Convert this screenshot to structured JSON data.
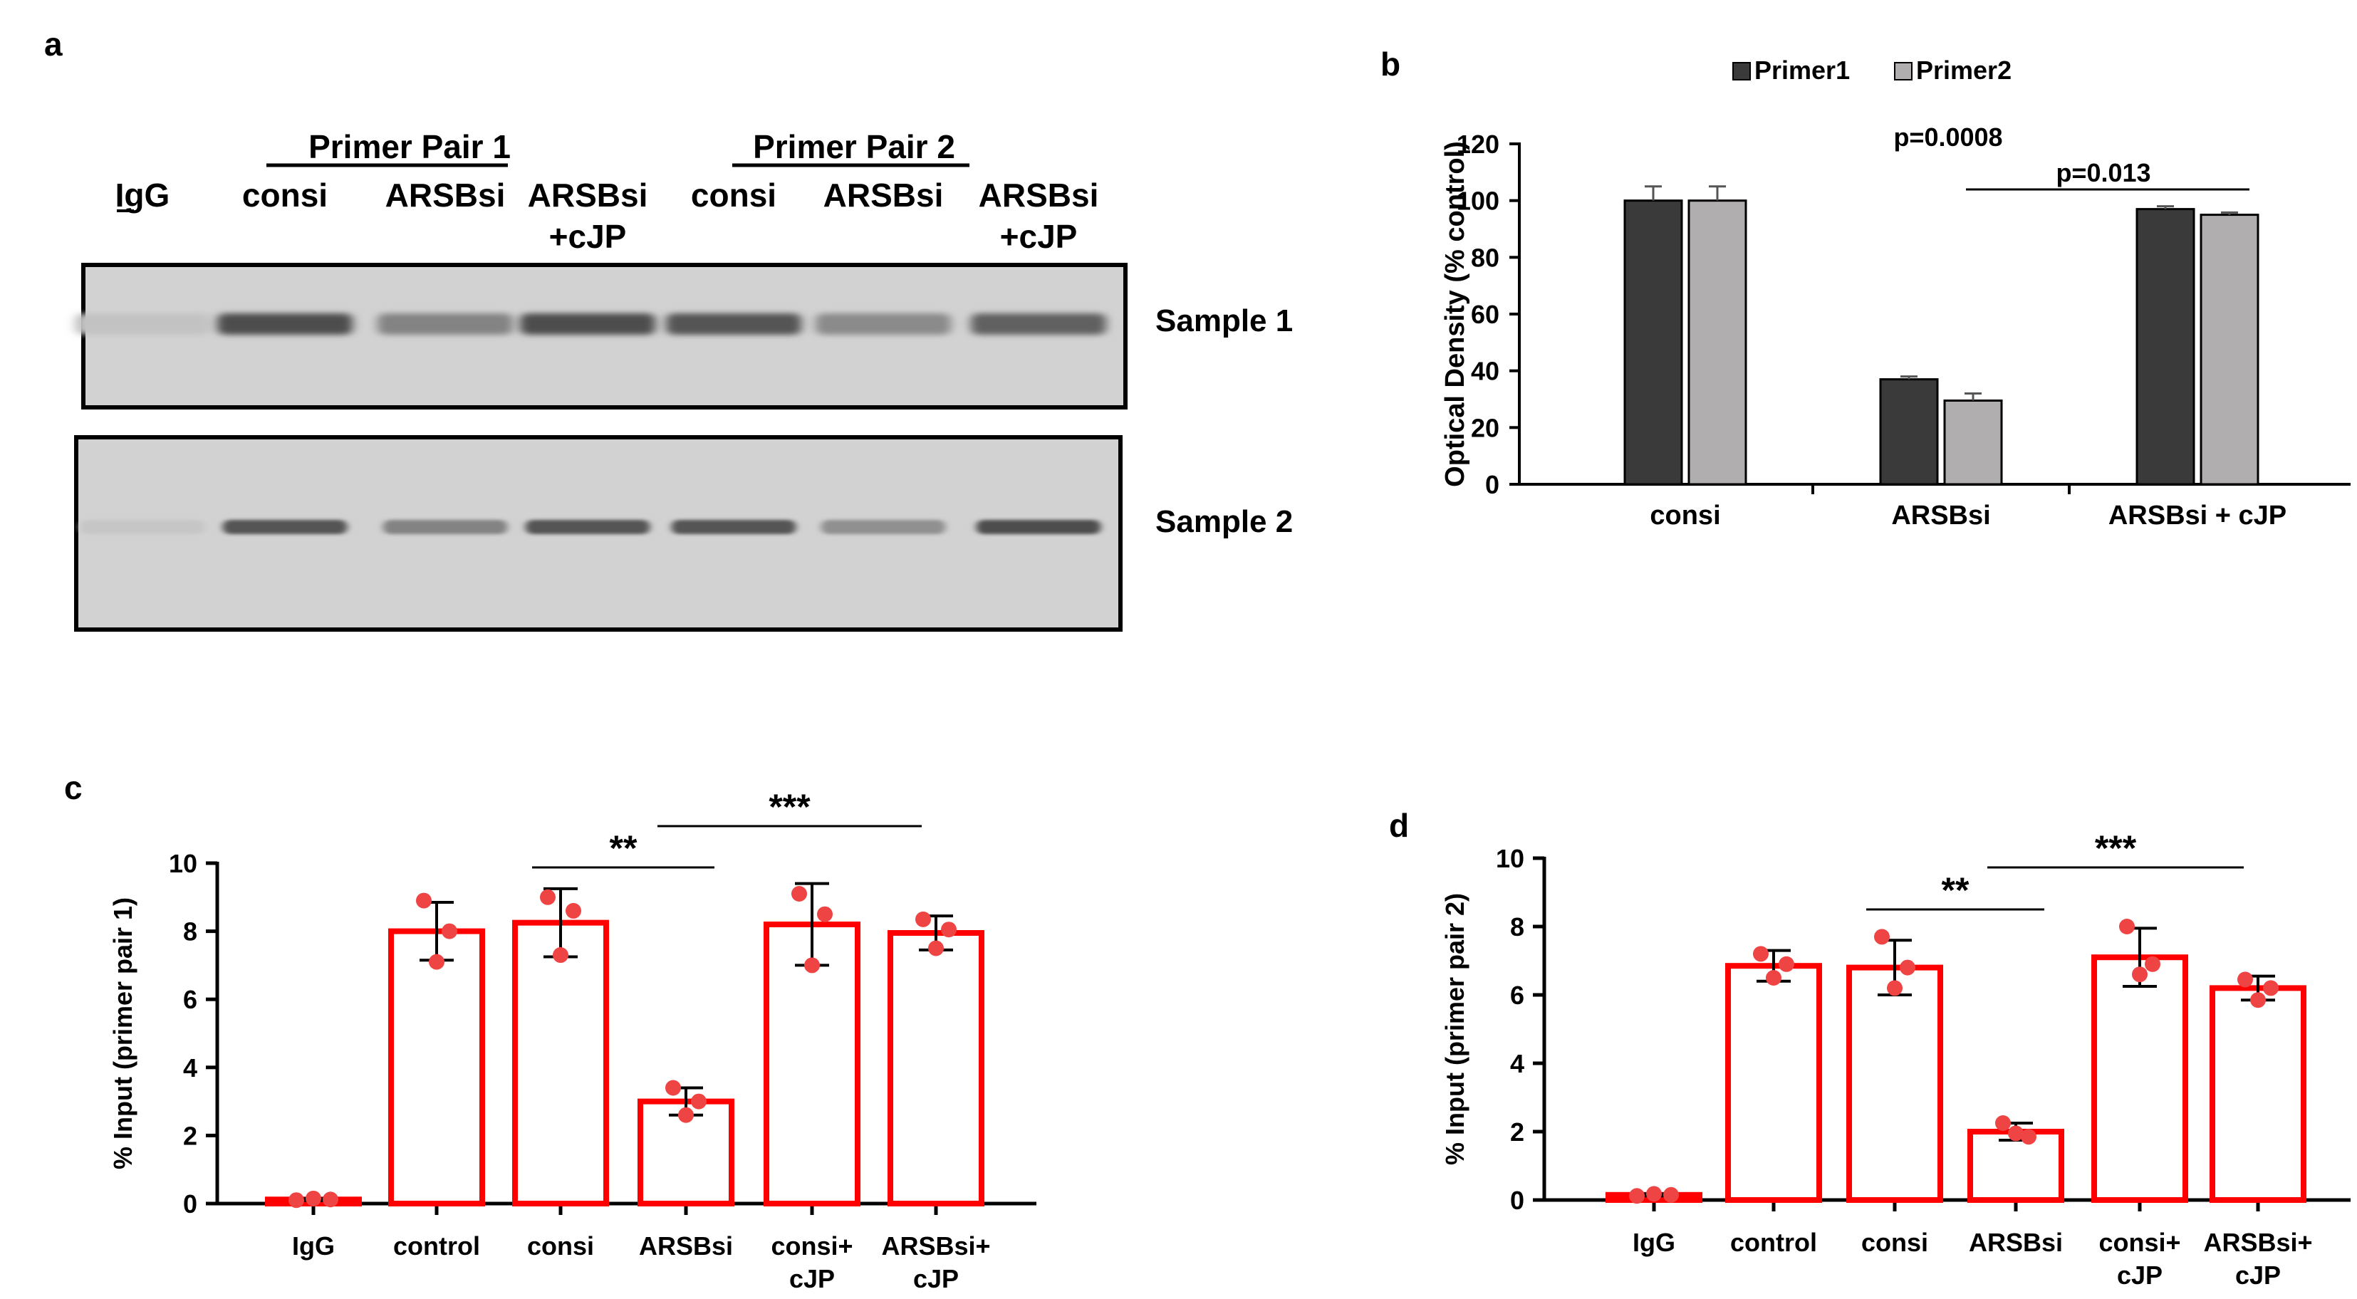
{
  "figure": {
    "panels": [
      {
        "letter": "a",
        "groups": [
          {
            "label": "Primer Pair 1"
          },
          {
            "label": "Primer Pair 2"
          }
        ],
        "lanes": [
          {
            "line1": "IgG",
            "line2": ""
          },
          {
            "line1": "consi",
            "line2": ""
          },
          {
            "line1": "ARSBsi",
            "line2": ""
          },
          {
            "line1": "ARSBsi",
            "line2": "+cJP"
          },
          {
            "line1": "consi",
            "line2": ""
          },
          {
            "line1": "ARSBsi",
            "line2": ""
          },
          {
            "line1": "ARSBsi",
            "line2": "+cJP"
          }
        ],
        "blots": [
          {
            "label": "Sample 1",
            "band_intensity": [
              0.08,
              0.95,
              0.55,
              0.95,
              0.9,
              0.5,
              0.8
            ]
          },
          {
            "label": "Sample 2",
            "band_intensity": [
              0.05,
              0.9,
              0.55,
              0.9,
              0.9,
              0.45,
              0.95
            ]
          }
        ]
      },
      {
        "letter": "b"
      },
      {
        "letter": "c"
      },
      {
        "letter": "d"
      }
    ]
  },
  "chart_data": [
    {
      "panel": "b",
      "type": "bar",
      "ylabel": "Optical Density (% control)",
      "ylim": [
        0,
        120
      ],
      "yticks": [
        0,
        20,
        40,
        60,
        80,
        100,
        120
      ],
      "categories": [
        "consi",
        "ARSBsi",
        "ARSBsi + cJP"
      ],
      "legend_position": "top",
      "series": [
        {
          "name": "Primer1",
          "color": "#3a3a3a",
          "values": [
            100,
            37,
            97
          ],
          "errors": [
            5,
            1,
            1
          ]
        },
        {
          "name": "Primer2",
          "color": "#b0aeae",
          "values": [
            100,
            29.5,
            95
          ],
          "errors": [
            5,
            2.5,
            0.8
          ]
        }
      ],
      "annotations": [
        {
          "text": "p=0.0008"
        },
        {
          "text": "p=0.013"
        }
      ]
    },
    {
      "panel": "c",
      "type": "bar",
      "ylabel": "% Input (primer pair 1)",
      "ylim": [
        0,
        10
      ],
      "yticks": [
        0,
        2,
        4,
        6,
        8,
        10
      ],
      "bar_color": "#ff0000",
      "point_color": "#ee4444",
      "categories": [
        {
          "line1": "IgG",
          "line2": ""
        },
        {
          "line1": "control",
          "line2": ""
        },
        {
          "line1": "consi",
          "line2": ""
        },
        {
          "line1": "ARSBsi",
          "line2": ""
        },
        {
          "line1": "consi+",
          "line2": "cJP"
        },
        {
          "line1": "ARSBsi+",
          "line2": "cJP"
        }
      ],
      "values": [
        0.12,
        8.0,
        8.25,
        3.0,
        8.2,
        7.95
      ],
      "errors": [
        0.03,
        0.85,
        1.0,
        0.4,
        1.2,
        0.5
      ],
      "points": [
        [
          0.1,
          0.15,
          0.12
        ],
        [
          8.9,
          8.0,
          7.1
        ],
        [
          9.0,
          8.6,
          7.3
        ],
        [
          3.4,
          3.0,
          2.6
        ],
        [
          9.1,
          8.5,
          7.0
        ],
        [
          8.35,
          8.05,
          7.5
        ]
      ],
      "annotations": [
        {
          "text": "**",
          "from": 2,
          "to": 3
        },
        {
          "text": "***",
          "from": 3,
          "to": 5
        }
      ]
    },
    {
      "panel": "d",
      "type": "bar",
      "ylabel": "% Input (primer pair 2)",
      "ylim": [
        0,
        10
      ],
      "yticks": [
        0,
        2,
        4,
        6,
        8,
        10
      ],
      "bar_color": "#ff0000",
      "point_color": "#ee4444",
      "categories": [
        {
          "line1": "IgG",
          "line2": ""
        },
        {
          "line1": "control",
          "line2": ""
        },
        {
          "line1": "consi",
          "line2": ""
        },
        {
          "line1": "ARSBsi",
          "line2": ""
        },
        {
          "line1": "consi+",
          "line2": "cJP"
        },
        {
          "line1": "ARSBsi+",
          "line2": "cJP"
        }
      ],
      "values": [
        0.15,
        6.85,
        6.8,
        2.0,
        7.1,
        6.2
      ],
      "errors": [
        0.03,
        0.45,
        0.8,
        0.25,
        0.85,
        0.35
      ],
      "points": [
        [
          0.12,
          0.18,
          0.15
        ],
        [
          7.2,
          6.9,
          6.5
        ],
        [
          7.7,
          6.8,
          6.2
        ],
        [
          2.25,
          1.85,
          1.95
        ],
        [
          8.0,
          6.9,
          6.6
        ],
        [
          6.45,
          6.2,
          5.85
        ]
      ],
      "annotations": [
        {
          "text": "**",
          "from": 2,
          "to": 3
        },
        {
          "text": "***",
          "from": 3,
          "to": 5
        }
      ]
    }
  ]
}
